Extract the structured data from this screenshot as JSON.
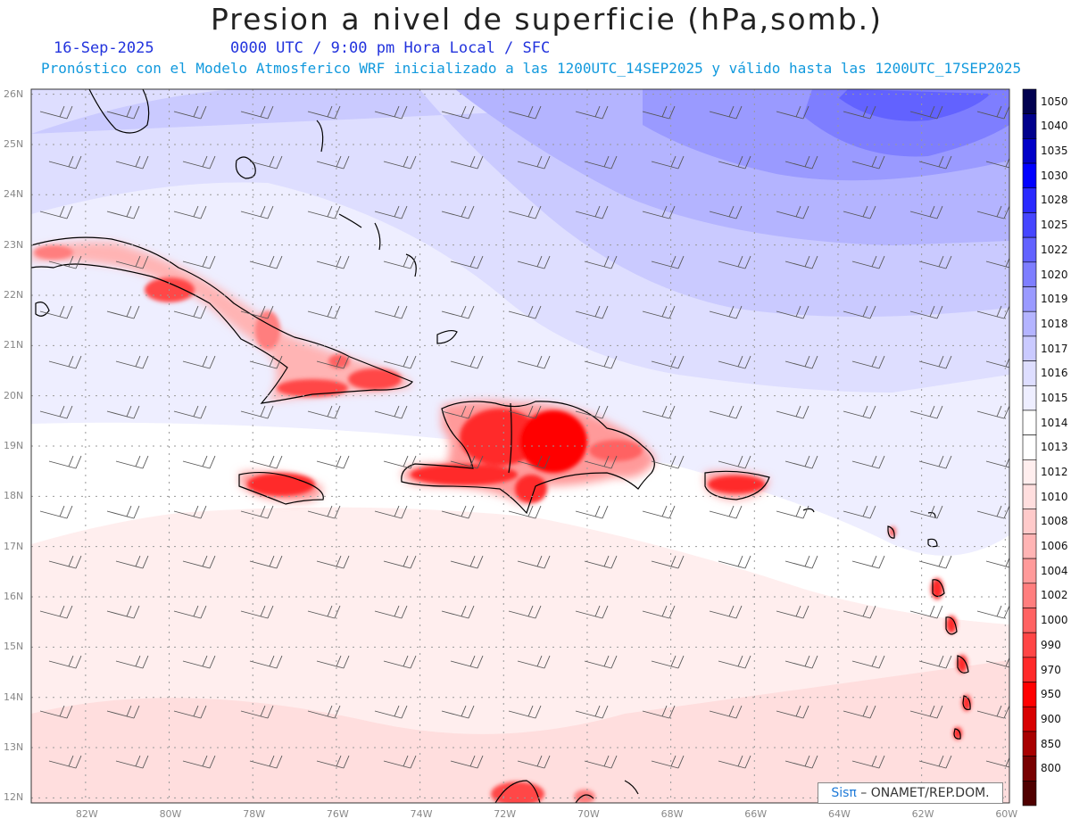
{
  "title": "Presion a nivel de superficie (hPa,somb.)",
  "date": "16-Sep-2025",
  "time_info": "0000 UTC / 9:00 pm Hora Local / SFC",
  "forecast_info": "Pronóstico con el Modelo Atmosferico WRF inicializado a las 1200UTC_14SEP2025 y válido hasta las  1200UTC_17SEP2025",
  "credit": {
    "brand": "Sisπ",
    "text": "ONAMET/REP.DOM."
  },
  "lat_labels": [
    "26N",
    "25N",
    "24N",
    "23N",
    "22N",
    "21N",
    "20N",
    "19N",
    "18N",
    "17N",
    "16N",
    "15N",
    "14N",
    "13N",
    "12N"
  ],
  "lon_labels": [
    "82W",
    "80W",
    "78W",
    "76W",
    "74W",
    "72W",
    "70W",
    "68W",
    "66W",
    "64W",
    "62W",
    "60W"
  ],
  "colorbar": {
    "levels": [
      "1050",
      "1040",
      "1035",
      "1030",
      "1028",
      "1025",
      "1022",
      "1020",
      "1019",
      "1018",
      "1017",
      "1016",
      "1015",
      "1014",
      "1013",
      "1012",
      "1010",
      "1008",
      "1006",
      "1004",
      "1002",
      "1000",
      "990",
      "970",
      "950",
      "900",
      "850",
      "800"
    ],
    "colors": [
      "#000050",
      "#00008c",
      "#0000c8",
      "#0000ff",
      "#2a2aff",
      "#4646ff",
      "#6262ff",
      "#7e7eff",
      "#9a9aff",
      "#b4b4ff",
      "#cacaff",
      "#dedeff",
      "#eeeeff",
      "#ffffff",
      "#ffffff",
      "#ffeeee",
      "#ffdede",
      "#ffcaca",
      "#ffb4b4",
      "#ff9a9a",
      "#ff7e7e",
      "#ff6262",
      "#ff4646",
      "#ff2a2a",
      "#ff0000",
      "#d80000",
      "#a80000",
      "#780000",
      "#500000"
    ]
  },
  "region": {
    "lon_min": -83.3,
    "lon_max": -59.9,
    "lat_min": 11.9,
    "lat_max": 26.1
  }
}
